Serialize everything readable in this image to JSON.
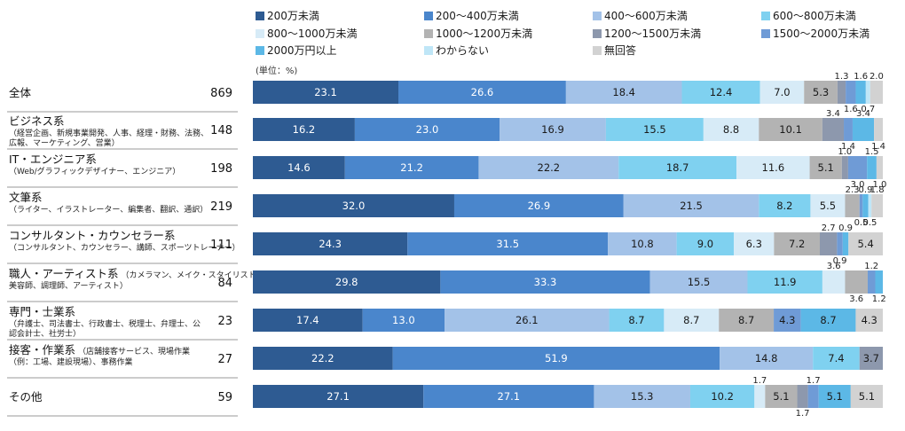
{
  "chart_data": {
    "type": "bar",
    "orientation": "horizontal",
    "stacked": true,
    "unit": "(単位：%)",
    "legend_position": "top",
    "series": [
      {
        "name": "200万未満",
        "color": "#2e5b92"
      },
      {
        "name": "200～400万未満",
        "color": "#4a86cc"
      },
      {
        "name": "400～600万未満",
        "color": "#a3c2e8"
      },
      {
        "name": "600～800万未満",
        "color": "#7fd1f0"
      },
      {
        "name": "800～1000万未満",
        "color": "#d7ebf7"
      },
      {
        "name": "1000～1200万未満",
        "color": "#b3b3b3"
      },
      {
        "name": "1200～1500万未満",
        "color": "#8d98ad"
      },
      {
        "name": "1500～2000万未満",
        "color": "#6f9bd6"
      },
      {
        "name": "2000万円以上",
        "color": "#5cb8e6"
      },
      {
        "name": "わからない",
        "color": "#bfe6f7"
      },
      {
        "name": "無回答",
        "color": "#d2d2d2"
      }
    ],
    "categories": [
      {
        "title": "全体",
        "sub": [],
        "n": "869",
        "values": [
          23.1,
          26.6,
          18.4,
          12.4,
          7.0,
          5.3,
          1.3,
          1.6,
          1.6,
          0.7,
          2.0
        ]
      },
      {
        "title": "ビジネス系",
        "sub": [
          "（経営企画、新規事業開発、人事、経理・財務、法務、",
          "広報、マーケティング、営業）"
        ],
        "n": "148",
        "values": [
          16.2,
          23.0,
          16.9,
          15.5,
          8.8,
          10.1,
          3.4,
          1.4,
          3.4,
          0.0,
          1.4
        ]
      },
      {
        "title": "IT・エンジニア系",
        "sub": [
          "（Web/グラフィックデザイナー、エンジニア）"
        ],
        "n": "198",
        "values": [
          14.6,
          21.2,
          22.2,
          18.7,
          11.6,
          5.1,
          1.0,
          3.0,
          1.5,
          0.0,
          1.0
        ]
      },
      {
        "title": "文筆系",
        "sub": [
          "（ライター、イラストレーター、編集者、翻訳、通訳）"
        ],
        "n": "219",
        "values": [
          32.0,
          26.9,
          21.5,
          8.2,
          5.5,
          2.3,
          0.0,
          0.5,
          0.9,
          0.5,
          1.8
        ]
      },
      {
        "title": "コンサルタント・カウンセラー系",
        "sub": [
          "（コンサルタント、カウンセラー、講師、スポーツトレーナー）"
        ],
        "n": "111",
        "values": [
          24.3,
          31.5,
          10.8,
          9.0,
          6.3,
          7.2,
          2.7,
          0.9,
          0.9,
          0.0,
          5.4
        ]
      },
      {
        "title": "職人・アーティスト系",
        "title_note": "（カメラマン、メイク・スタイリスト、",
        "sub": [
          "美容師、調理師、アーティスト）"
        ],
        "n": "84",
        "values": [
          29.8,
          33.3,
          15.5,
          11.9,
          3.6,
          3.6,
          0.0,
          1.2,
          1.2,
          0.0,
          0.0
        ]
      },
      {
        "title": "専門・士業系",
        "sub": [
          "（弁護士、司法書士、行政書士、税理士、弁理士、公",
          "認会計士、社労士）"
        ],
        "n": "23",
        "values": [
          17.4,
          13.0,
          26.1,
          8.7,
          8.7,
          8.7,
          0.0,
          4.3,
          8.7,
          0.0,
          4.3
        ]
      },
      {
        "title": "接客・作業系",
        "title_note": "（店舗接客サービス、現場作業",
        "sub": [
          "（例：工場、建設現場）、事務作業"
        ],
        "n": "27",
        "values": [
          22.2,
          51.9,
          14.8,
          7.4,
          0.0,
          0.0,
          3.7,
          0.0,
          0.0,
          0.0,
          0.0
        ]
      },
      {
        "title": "その他",
        "sub": [],
        "n": "59",
        "values": [
          27.1,
          27.1,
          15.3,
          10.2,
          1.7,
          5.1,
          1.7,
          1.7,
          5.1,
          0.0,
          5.1
        ]
      }
    ]
  }
}
